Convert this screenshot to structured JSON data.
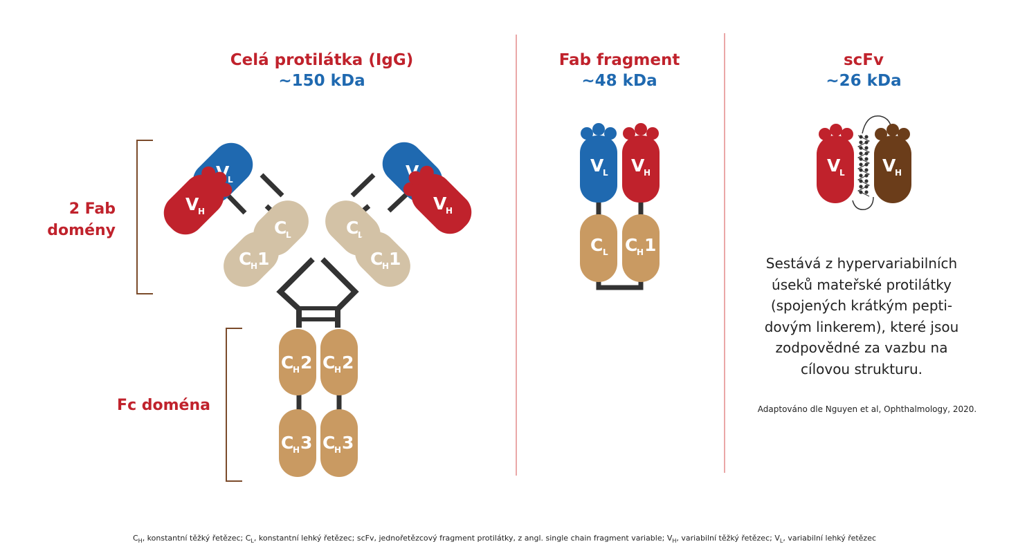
{
  "titles": {
    "igg": {
      "name": "Celá protilátka (IgG)",
      "mass": "~150 kDa"
    },
    "fab": {
      "name": "Fab fragment",
      "mass": "~48 kDa"
    },
    "scfv": {
      "name": "scFv",
      "mass": "~26 kDa"
    }
  },
  "side_labels": {
    "fab_line1": "2 Fab",
    "fab_line2": "domény",
    "fc": "Fc doména"
  },
  "domain_labels": {
    "vl": {
      "main": "V",
      "sub": "L"
    },
    "vh": {
      "main": "V",
      "sub": "H"
    },
    "cl": {
      "main": "C",
      "sub": "L"
    },
    "ch1": {
      "main": "C",
      "sub": "H",
      "num": "1"
    },
    "ch2": {
      "main": "C",
      "sub": "H",
      "num": "2"
    },
    "ch3": {
      "main": "C",
      "sub": "H",
      "num": "3"
    }
  },
  "scfv_description": "Sestává z hypervariabilních\núseků mateřské protilátky\n(spojených krátkým pepti-\ndovým linkerem), které jsou\nzodpovědné za vazbu na\ncílovou strukturu.",
  "source_note": "Adaptováno dle Nguyen et al, Ophthalmology, 2020.",
  "footnote": {
    "ch_abbr_main": "C",
    "ch_abbr_sub": "H",
    "ch_text": ", konstantní těžký řetězec; ",
    "cl_abbr_main": "C",
    "cl_abbr_sub": "L",
    "cl_text": ", konstantní lehký řetězec; scFv, jednořetězcový fragment protilátky, z angl. single chain fragment variable; ",
    "vh_abbr_main": "V",
    "vh_abbr_sub": "H",
    "vh_text": ", variabilní těžký řetězec; ",
    "vl_abbr_main": "V",
    "vl_abbr_sub": "L",
    "vl_text": ", variabilní lehký řetězec"
  },
  "colors": {
    "accent_red": "#c0222c",
    "accent_blue": "#1f69b0",
    "vh_fill": "#c0222c",
    "vl_fill": "#1f69b0",
    "scfv_vh_fill": "#6b3d1a",
    "light_constant_fill": "#d3c2a6",
    "heavy_constant_fill": "#c99a62",
    "hinge": "#333333",
    "bracket": "#7a4a2a",
    "divider": "#e48a8a"
  }
}
